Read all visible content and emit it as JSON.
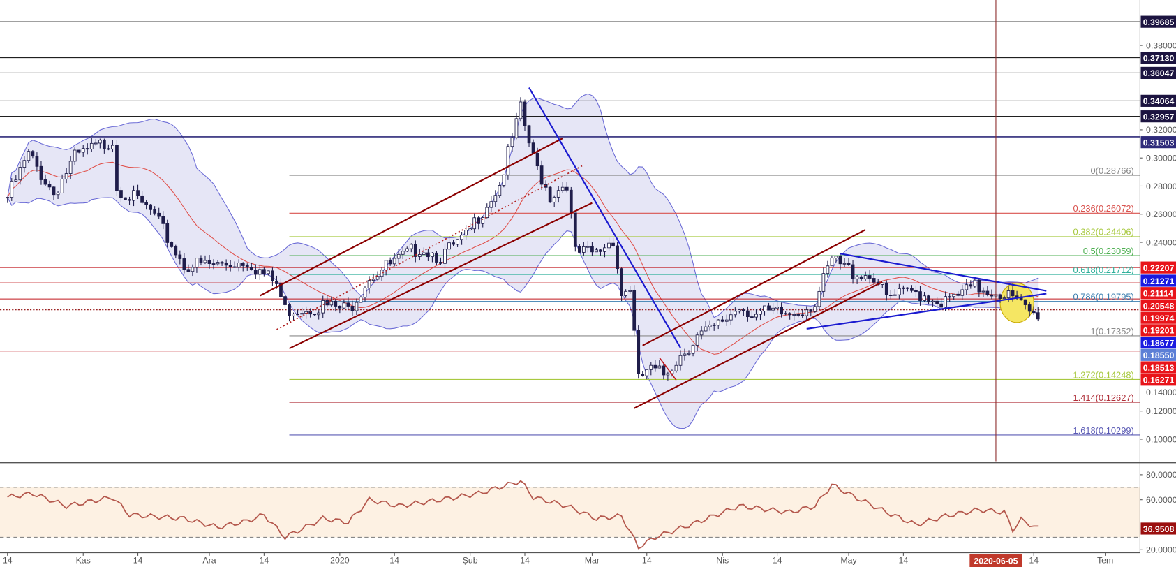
{
  "chart_data": {
    "type": "candlestick",
    "title": "",
    "start_date": "2019-10-14",
    "price_axis": {
      "range": [
        0.09,
        0.4
      ],
      "ticks": [
        "0.10000",
        "0.12000",
        "0.14000",
        "0.24000",
        "0.26000",
        "0.28000",
        "0.30000",
        "0.32000",
        "0.38000"
      ]
    },
    "time_axis": {
      "ticks": [
        {
          "date": "2019-10-14",
          "label": "14"
        },
        {
          "date": "2019-11-01",
          "label": "Kas"
        },
        {
          "date": "2019-11-14",
          "label": "14"
        },
        {
          "date": "2019-12-01",
          "label": "Ara"
        },
        {
          "date": "2019-12-14",
          "label": "14"
        },
        {
          "date": "2020-01-01",
          "label": "2020"
        },
        {
          "date": "2020-01-14",
          "label": "14"
        },
        {
          "date": "2020-02-01",
          "label": "Şub"
        },
        {
          "date": "2020-02-14",
          "label": "14"
        },
        {
          "date": "2020-03-01",
          "label": "Mar"
        },
        {
          "date": "2020-03-14",
          "label": "14"
        },
        {
          "date": "2020-04-01",
          "label": "Nis"
        },
        {
          "date": "2020-04-14",
          "label": "14"
        },
        {
          "date": "2020-05-01",
          "label": "May"
        },
        {
          "date": "2020-05-14",
          "label": "14"
        },
        {
          "date": "2020-06-14",
          "label": "14"
        },
        {
          "date": "2020-07-01",
          "label": "Tem"
        }
      ],
      "cursor": {
        "date": "2020-06-05",
        "label": "2020-06-05"
      }
    },
    "close_path": [
      [
        "2019-10-14",
        0.272
      ],
      [
        "2019-10-19",
        0.302
      ],
      [
        "2019-10-25",
        0.275
      ],
      [
        "2019-10-30",
        0.3
      ],
      [
        "2019-11-08",
        0.313
      ],
      [
        "2019-11-09",
        0.28
      ],
      [
        "2019-11-17",
        0.262
      ],
      [
        "2019-11-25",
        0.224
      ],
      [
        "2019-12-03",
        0.224
      ],
      [
        "2019-12-10",
        0.227
      ],
      [
        "2019-12-17",
        0.21
      ],
      [
        "2019-12-19",
        0.192
      ],
      [
        "2019-12-28",
        0.195
      ],
      [
        "2020-01-03",
        0.192
      ],
      [
        "2020-01-08",
        0.216
      ],
      [
        "2020-01-15",
        0.227
      ],
      [
        "2020-01-20",
        0.237
      ],
      [
        "2020-01-25",
        0.23
      ],
      [
        "2020-01-31",
        0.243
      ],
      [
        "2020-02-03",
        0.259
      ],
      [
        "2020-02-08",
        0.281
      ],
      [
        "2020-02-13",
        0.334
      ],
      [
        "2020-02-16",
        0.299
      ],
      [
        "2020-02-20",
        0.273
      ],
      [
        "2020-02-24",
        0.283
      ],
      [
        "2020-02-26",
        0.232
      ],
      [
        "2020-03-02",
        0.232
      ],
      [
        "2020-03-06",
        0.243
      ],
      [
        "2020-03-08",
        0.203
      ],
      [
        "2020-03-10",
        0.208
      ],
      [
        "2020-03-12",
        0.141
      ],
      [
        "2020-03-14",
        0.149
      ],
      [
        "2020-03-18",
        0.146
      ],
      [
        "2020-03-22",
        0.16
      ],
      [
        "2020-03-26",
        0.173
      ],
      [
        "2020-03-30",
        0.178
      ],
      [
        "2020-04-05",
        0.195
      ],
      [
        "2020-04-09",
        0.189
      ],
      [
        "2020-04-17",
        0.189
      ],
      [
        "2020-04-23",
        0.197
      ],
      [
        "2020-04-27",
        0.227
      ],
      [
        "2020-05-02",
        0.219
      ],
      [
        "2020-05-07",
        0.216
      ],
      [
        "2020-05-10",
        0.2
      ],
      [
        "2020-05-17",
        0.205
      ],
      [
        "2020-05-24",
        0.197
      ],
      [
        "2020-05-31",
        0.208
      ],
      [
        "2020-06-07",
        0.204
      ],
      [
        "2020-06-11",
        0.195
      ],
      [
        "2020-06-15",
        0.1855
      ]
    ],
    "horizontal_levels": [
      {
        "value": 0.39685,
        "color": "#000000"
      },
      {
        "value": 0.3713,
        "color": "#000000"
      },
      {
        "value": 0.36047,
        "color": "#000000"
      },
      {
        "value": 0.34064,
        "color": "#000000"
      },
      {
        "value": 0.32957,
        "color": "#000000"
      },
      {
        "value": 0.31503,
        "color": "#2e2a7a"
      },
      {
        "value": 0.22207,
        "color": "#c0161c"
      },
      {
        "value": 0.21114,
        "color": "#c0161c"
      },
      {
        "value": 0.19974,
        "color": "#c0161c"
      },
      {
        "value": 0.19201,
        "color": "#8b0000",
        "dotted": true
      },
      {
        "value": 0.16271,
        "color": "#c0161c"
      }
    ],
    "fibonacci": {
      "start_date": "2019-12-20",
      "levels": [
        {
          "label": "0(0.28766)",
          "value": 0.28766,
          "color": "#8a8a8a"
        },
        {
          "label": "0.236(0.26072)",
          "value": 0.26072,
          "color": "#d9534f"
        },
        {
          "label": "0.382(0.24406)",
          "value": 0.24406,
          "color": "#a8c940"
        },
        {
          "label": "0.5(0.23059)",
          "value": 0.23059,
          "color": "#4caf50"
        },
        {
          "label": "0.618(0.21712)",
          "value": 0.21712,
          "color": "#2eaf9a"
        },
        {
          "label": "0.786(0.19795)",
          "value": 0.19795,
          "color": "#3b7fb0"
        },
        {
          "label": "1(0.17352)",
          "value": 0.17352,
          "color": "#8a8a8a"
        },
        {
          "label": "1.272(0.14248)",
          "value": 0.14248,
          "color": "#a8c940"
        },
        {
          "label": "1.414(0.12627)",
          "value": 0.12627,
          "color": "#b0303a"
        },
        {
          "label": "1.618(0.10299)",
          "value": 0.10299,
          "color": "#5b5bb5"
        }
      ]
    },
    "trend_lines": [
      {
        "from": [
          "2019-12-13",
          0.202
        ],
        "to": [
          "2020-02-23",
          0.314
        ],
        "color": "#8b0000"
      },
      {
        "from": [
          "2019-12-20",
          0.1645
        ],
        "to": [
          "2020-03-01",
          0.268
        ],
        "color": "#8b0000"
      },
      {
        "from": [
          "2019-12-17",
          0.178
        ],
        "to": [
          "2020-02-28",
          0.295
        ],
        "color": "#b22222",
        "dotted": true
      },
      {
        "from": [
          "2020-02-15",
          0.35
        ],
        "to": [
          "2020-03-22",
          0.165
        ],
        "color": "#1a1ad0"
      },
      {
        "from": [
          "2020-03-13",
          0.1666
        ],
        "to": [
          "2020-05-05",
          0.249
        ],
        "color": "#8b0000"
      },
      {
        "from": [
          "2020-03-11",
          0.122
        ],
        "to": [
          "2020-05-09",
          0.2118
        ],
        "color": "#8b0000"
      },
      {
        "from": [
          "2020-03-17",
          0.158
        ],
        "to": [
          "2020-03-21",
          0.142
        ],
        "color": "#c0161c"
      },
      {
        "from": [
          "2020-04-29",
          0.232
        ],
        "to": [
          "2020-06-17",
          0.2055
        ],
        "color": "#1a1ad0"
      },
      {
        "from": [
          "2020-04-21",
          0.1785
        ],
        "to": [
          "2020-06-17",
          0.2035
        ],
        "color": "#1a1ad0"
      }
    ],
    "highlight_ellipse": {
      "center": [
        "2020-06-10",
        0.197
      ],
      "days_radius": 4,
      "price_radius": 0.014,
      "color": "#f5e663"
    },
    "price_badges": [
      {
        "value": "0.39685",
        "price": 0.39685,
        "color": "#1c1440"
      },
      {
        "value": "0.37130",
        "price": 0.3713,
        "color": "#1c1440"
      },
      {
        "value": "0.36047",
        "price": 0.36047,
        "color": "#1c1440"
      },
      {
        "value": "0.34064",
        "price": 0.34064,
        "color": "#1c1440"
      },
      {
        "value": "0.32957",
        "price": 0.32957,
        "color": "#1c1440"
      },
      {
        "value": "0.31503",
        "price": 0.31503,
        "color": "#2e2a7a"
      },
      {
        "value": "0.22207",
        "price": 0.22207,
        "color": "#e8141a"
      },
      {
        "value": "0.21271",
        "price": 0.21271,
        "color": "#1a1ae0"
      },
      {
        "value": "0.21114",
        "price": 0.21114,
        "color": "#e8141a"
      },
      {
        "value": "0.20548",
        "price": 0.20548,
        "color": "#e8141a"
      },
      {
        "value": "0.19974",
        "price": 0.19974,
        "color": "#e8141a"
      },
      {
        "value": "0.19201",
        "price": 0.19201,
        "color": "#e8141a"
      },
      {
        "value": "0.18677",
        "price": 0.18677,
        "color": "#1a1ae0"
      },
      {
        "value": "0.18550",
        "price": 0.1855,
        "color": "#5c7fd6"
      },
      {
        "value": "0.18513",
        "price": 0.18513,
        "color": "#e8141a"
      },
      {
        "value": "0.16271",
        "price": 0.16271,
        "color": "#e8141a"
      }
    ],
    "rsi": {
      "range": [
        15,
        85
      ],
      "overbought": 70,
      "oversold": 30,
      "ticks": [
        "80.0000",
        "60.0000",
        "20.0000"
      ],
      "current": "36.9508",
      "path": [
        [
          "2019-10-14",
          62
        ],
        [
          "2019-10-20",
          65
        ],
        [
          "2019-10-28",
          55
        ],
        [
          "2019-11-08",
          62
        ],
        [
          "2019-11-12",
          48
        ],
        [
          "2019-11-25",
          45
        ],
        [
          "2019-12-03",
          38
        ],
        [
          "2019-12-10",
          43
        ],
        [
          "2019-12-14",
          48
        ],
        [
          "2019-12-19",
          30
        ],
        [
          "2019-12-28",
          45
        ],
        [
          "2020-01-03",
          42
        ],
        [
          "2020-01-08",
          60
        ],
        [
          "2020-01-15",
          55
        ],
        [
          "2020-01-25",
          60
        ],
        [
          "2020-02-03",
          65
        ],
        [
          "2020-02-13",
          75
        ],
        [
          "2020-02-16",
          62
        ],
        [
          "2020-02-24",
          55
        ],
        [
          "2020-03-02",
          45
        ],
        [
          "2020-03-08",
          47
        ],
        [
          "2020-03-12",
          22
        ],
        [
          "2020-03-16",
          30
        ],
        [
          "2020-03-26",
          42
        ],
        [
          "2020-04-05",
          55
        ],
        [
          "2020-04-17",
          50
        ],
        [
          "2020-04-23",
          55
        ],
        [
          "2020-04-27",
          72
        ],
        [
          "2020-05-02",
          63
        ],
        [
          "2020-05-10",
          50
        ],
        [
          "2020-05-17",
          40
        ],
        [
          "2020-05-24",
          47
        ],
        [
          "2020-06-01",
          52
        ],
        [
          "2020-06-07",
          50
        ],
        [
          "2020-06-09",
          36
        ],
        [
          "2020-06-11",
          44
        ],
        [
          "2020-06-15",
          37
        ]
      ]
    },
    "colors": {
      "bull": "#ffffff",
      "bear": "#1f1d4a",
      "band_fill": "#dcdcf2",
      "band_line": "#6b6bd6",
      "ma": "#e0504a",
      "rsi": "#b4574c",
      "rsi_bg": "#fdf1e3"
    }
  }
}
